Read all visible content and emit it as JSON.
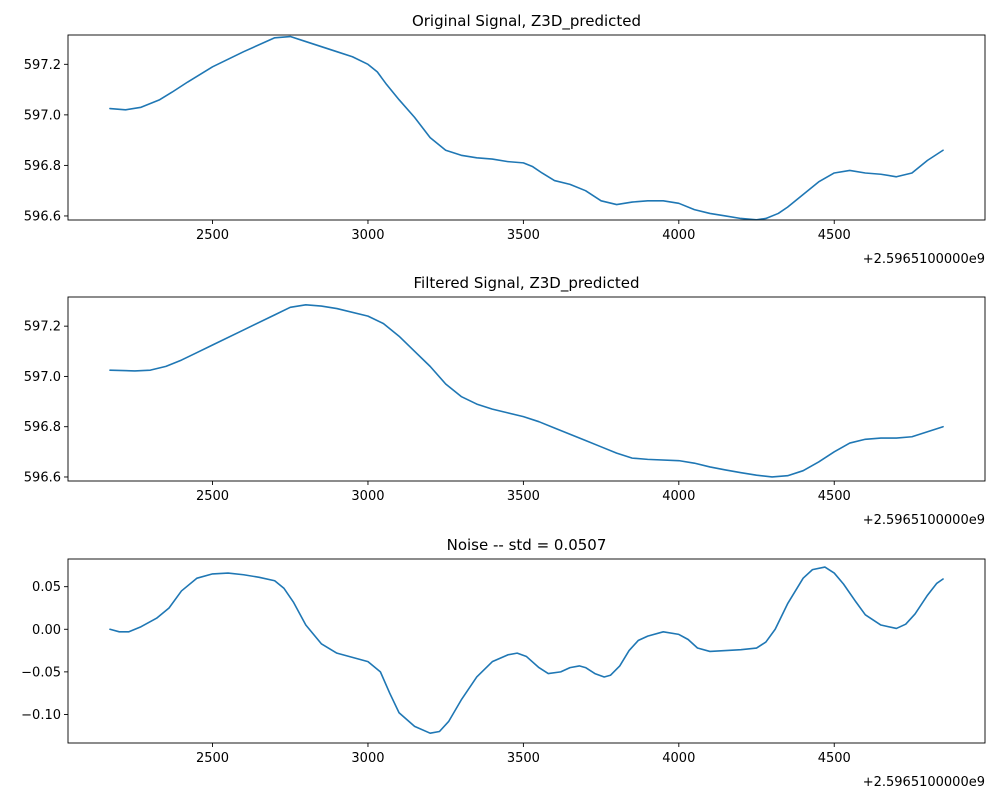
{
  "chart_data": [
    {
      "type": "line",
      "title": "Original Signal, Z3D_predicted",
      "x_offset_label": "+2.5965100000e9",
      "xlim": [
        2035,
        4985
      ],
      "ylim": [
        596.584,
        597.316
      ],
      "xticks": [
        2500,
        3000,
        3500,
        4000,
        4500
      ],
      "xtick_labels": [
        "2500",
        "3000",
        "3500",
        "4000",
        "4500"
      ],
      "yticks": [
        596.6,
        596.8,
        597.0,
        597.2
      ],
      "ytick_labels": [
        "596.6",
        "596.8",
        "597.0",
        "597.2"
      ],
      "grid": false,
      "series": [
        {
          "color": "#1f77b4",
          "x": [
            2170,
            2220,
            2270,
            2330,
            2370,
            2420,
            2500,
            2600,
            2700,
            2750,
            2800,
            2900,
            2950,
            3000,
            3030,
            3060,
            3100,
            3150,
            3200,
            3250,
            3300,
            3350,
            3400,
            3450,
            3500,
            3530,
            3560,
            3600,
            3650,
            3700,
            3750,
            3800,
            3850,
            3900,
            3950,
            4000,
            4050,
            4100,
            4150,
            4200,
            4250,
            4280,
            4320,
            4350,
            4400,
            4450,
            4500,
            4550,
            4600,
            4650,
            4700,
            4750,
            4800,
            4850
          ],
          "y": [
            597.025,
            597.02,
            597.03,
            597.06,
            597.09,
            597.13,
            597.19,
            597.25,
            597.305,
            597.31,
            597.29,
            597.25,
            597.23,
            597.2,
            597.17,
            597.12,
            597.06,
            596.99,
            596.91,
            596.86,
            596.84,
            596.83,
            596.825,
            596.815,
            596.81,
            596.795,
            596.77,
            596.74,
            596.725,
            596.7,
            596.66,
            596.645,
            596.655,
            596.66,
            596.66,
            596.65,
            596.625,
            596.61,
            596.6,
            596.59,
            596.585,
            596.59,
            596.61,
            596.635,
            596.685,
            596.735,
            596.77,
            596.78,
            596.77,
            596.765,
            596.755,
            596.77,
            596.82,
            596.86
          ]
        }
      ]
    },
    {
      "type": "line",
      "title": "Filtered Signal, Z3D_predicted",
      "x_offset_label": "+2.5965100000e9",
      "xlim": [
        2035,
        4985
      ],
      "ylim": [
        596.584,
        597.316
      ],
      "xticks": [
        2500,
        3000,
        3500,
        4000,
        4500
      ],
      "xtick_labels": [
        "2500",
        "3000",
        "3500",
        "4000",
        "4500"
      ],
      "yticks": [
        596.6,
        596.8,
        597.0,
        597.2
      ],
      "ytick_labels": [
        "596.6",
        "596.8",
        "597.0",
        "597.2"
      ],
      "grid": false,
      "series": [
        {
          "color": "#1f77b4",
          "x": [
            2170,
            2250,
            2300,
            2350,
            2400,
            2450,
            2500,
            2600,
            2700,
            2750,
            2800,
            2850,
            2900,
            3000,
            3050,
            3100,
            3150,
            3200,
            3250,
            3300,
            3350,
            3400,
            3450,
            3500,
            3550,
            3600,
            3650,
            3700,
            3750,
            3800,
            3850,
            3900,
            4000,
            4050,
            4100,
            4150,
            4200,
            4250,
            4300,
            4350,
            4400,
            4450,
            4500,
            4550,
            4600,
            4650,
            4700,
            4750,
            4800,
            4850
          ],
          "y": [
            597.025,
            597.022,
            597.025,
            597.04,
            597.065,
            597.095,
            597.125,
            597.185,
            597.245,
            597.275,
            597.285,
            597.28,
            597.27,
            597.24,
            597.21,
            597.16,
            597.1,
            597.04,
            596.97,
            596.92,
            596.89,
            596.87,
            596.855,
            596.84,
            596.82,
            596.795,
            596.77,
            596.745,
            596.72,
            596.695,
            596.675,
            596.67,
            596.665,
            596.655,
            596.64,
            596.628,
            596.617,
            596.607,
            596.6,
            596.605,
            596.625,
            596.66,
            596.7,
            596.735,
            596.75,
            596.755,
            596.755,
            596.76,
            596.78,
            596.8
          ]
        }
      ]
    },
    {
      "type": "line",
      "title": "Noise -- std = 0.0507",
      "x_offset_label": "+2.5965100000e9",
      "xlim": [
        2035,
        4985
      ],
      "ylim": [
        -0.1335,
        0.0825
      ],
      "xticks": [
        2500,
        3000,
        3500,
        4000,
        4500
      ],
      "xtick_labels": [
        "2500",
        "3000",
        "3500",
        "4000",
        "4500"
      ],
      "yticks": [
        -0.1,
        -0.05,
        0.0,
        0.05
      ],
      "ytick_labels": [
        "−0.10",
        "−0.05",
        "0.00",
        "0.05"
      ],
      "grid": false,
      "series": [
        {
          "color": "#1f77b4",
          "x": [
            2170,
            2200,
            2230,
            2270,
            2320,
            2360,
            2400,
            2450,
            2500,
            2550,
            2600,
            2650,
            2700,
            2730,
            2760,
            2800,
            2850,
            2900,
            2950,
            3000,
            3040,
            3070,
            3100,
            3150,
            3200,
            3230,
            3260,
            3300,
            3350,
            3400,
            3450,
            3480,
            3510,
            3550,
            3580,
            3620,
            3650,
            3680,
            3700,
            3730,
            3760,
            3780,
            3810,
            3840,
            3870,
            3900,
            3950,
            4000,
            4030,
            4060,
            4100,
            4150,
            4200,
            4250,
            4280,
            4310,
            4350,
            4400,
            4430,
            4470,
            4500,
            4530,
            4570,
            4600,
            4650,
            4700,
            4730,
            4760,
            4800,
            4830,
            4850
          ],
          "y": [
            0.0,
            -0.003,
            -0.003,
            0.003,
            0.013,
            0.025,
            0.045,
            0.06,
            0.065,
            0.066,
            0.064,
            0.061,
            0.057,
            0.048,
            0.032,
            0.005,
            -0.017,
            -0.028,
            -0.033,
            -0.038,
            -0.05,
            -0.075,
            -0.098,
            -0.114,
            -0.122,
            -0.12,
            -0.108,
            -0.083,
            -0.056,
            -0.038,
            -0.03,
            -0.028,
            -0.032,
            -0.045,
            -0.052,
            -0.05,
            -0.045,
            -0.043,
            -0.045,
            -0.052,
            -0.056,
            -0.054,
            -0.043,
            -0.025,
            -0.013,
            -0.008,
            -0.003,
            -0.006,
            -0.012,
            -0.022,
            -0.026,
            -0.025,
            -0.024,
            -0.022,
            -0.015,
            0.0,
            0.03,
            0.06,
            0.07,
            0.073,
            0.066,
            0.053,
            0.032,
            0.017,
            0.005,
            0.001,
            0.006,
            0.018,
            0.04,
            0.054,
            0.059
          ]
        }
      ]
    }
  ]
}
